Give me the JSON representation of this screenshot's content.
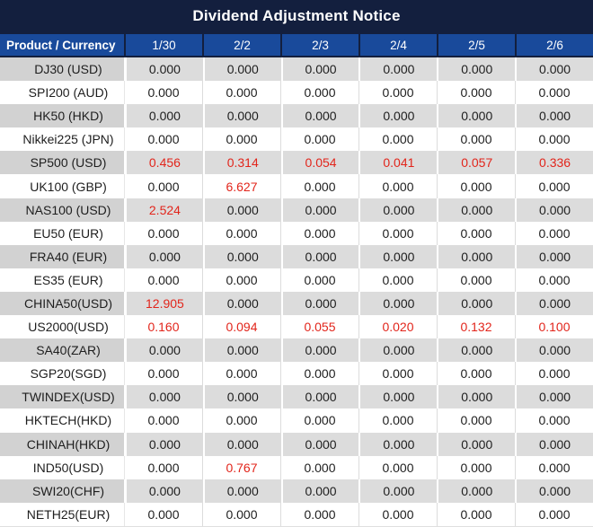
{
  "title": "Dividend Adjustment Notice",
  "chart_data": {
    "type": "table",
    "title": "Dividend Adjustment Notice",
    "columns": [
      "Product / Currency",
      "1/30",
      "2/2",
      "2/3",
      "2/4",
      "2/5",
      "2/6"
    ],
    "rows": [
      {
        "product": "DJ30 (USD)",
        "values": [
          "0.000",
          "0.000",
          "0.000",
          "0.000",
          "0.000",
          "0.000"
        ],
        "red_flags": [
          false,
          false,
          false,
          false,
          false,
          false
        ]
      },
      {
        "product": "SPI200 (AUD)",
        "values": [
          "0.000",
          "0.000",
          "0.000",
          "0.000",
          "0.000",
          "0.000"
        ],
        "red_flags": [
          false,
          false,
          false,
          false,
          false,
          false
        ]
      },
      {
        "product": "HK50 (HKD)",
        "values": [
          "0.000",
          "0.000",
          "0.000",
          "0.000",
          "0.000",
          "0.000"
        ],
        "red_flags": [
          false,
          false,
          false,
          false,
          false,
          false
        ]
      },
      {
        "product": "Nikkei225 (JPN)",
        "values": [
          "0.000",
          "0.000",
          "0.000",
          "0.000",
          "0.000",
          "0.000"
        ],
        "red_flags": [
          false,
          false,
          false,
          false,
          false,
          false
        ]
      },
      {
        "product": "SP500 (USD)",
        "values": [
          "0.456",
          "0.314",
          "0.054",
          "0.041",
          "0.057",
          "0.336"
        ],
        "red_flags": [
          true,
          true,
          true,
          true,
          true,
          true
        ]
      },
      {
        "product": "UK100 (GBP)",
        "values": [
          "0.000",
          "6.627",
          "0.000",
          "0.000",
          "0.000",
          "0.000"
        ],
        "red_flags": [
          false,
          true,
          false,
          false,
          false,
          false
        ]
      },
      {
        "product": "NAS100 (USD)",
        "values": [
          "2.524",
          "0.000",
          "0.000",
          "0.000",
          "0.000",
          "0.000"
        ],
        "red_flags": [
          true,
          false,
          false,
          false,
          false,
          false
        ]
      },
      {
        "product": "EU50 (EUR)",
        "values": [
          "0.000",
          "0.000",
          "0.000",
          "0.000",
          "0.000",
          "0.000"
        ],
        "red_flags": [
          false,
          false,
          false,
          false,
          false,
          false
        ]
      },
      {
        "product": "FRA40 (EUR)",
        "values": [
          "0.000",
          "0.000",
          "0.000",
          "0.000",
          "0.000",
          "0.000"
        ],
        "red_flags": [
          false,
          false,
          false,
          false,
          false,
          false
        ]
      },
      {
        "product": "ES35 (EUR)",
        "values": [
          "0.000",
          "0.000",
          "0.000",
          "0.000",
          "0.000",
          "0.000"
        ],
        "red_flags": [
          false,
          false,
          false,
          false,
          false,
          false
        ]
      },
      {
        "product": "CHINA50(USD)",
        "values": [
          "12.905",
          "0.000",
          "0.000",
          "0.000",
          "0.000",
          "0.000"
        ],
        "red_flags": [
          true,
          false,
          false,
          false,
          false,
          false
        ]
      },
      {
        "product": "US2000(USD)",
        "values": [
          "0.160",
          "0.094",
          "0.055",
          "0.020",
          "0.132",
          "0.100"
        ],
        "red_flags": [
          true,
          true,
          true,
          true,
          true,
          true
        ]
      },
      {
        "product": "SA40(ZAR)",
        "values": [
          "0.000",
          "0.000",
          "0.000",
          "0.000",
          "0.000",
          "0.000"
        ],
        "red_flags": [
          false,
          false,
          false,
          false,
          false,
          false
        ]
      },
      {
        "product": "SGP20(SGD)",
        "values": [
          "0.000",
          "0.000",
          "0.000",
          "0.000",
          "0.000",
          "0.000"
        ],
        "red_flags": [
          false,
          false,
          false,
          false,
          false,
          false
        ]
      },
      {
        "product": "TWINDEX(USD)",
        "values": [
          "0.000",
          "0.000",
          "0.000",
          "0.000",
          "0.000",
          "0.000"
        ],
        "red_flags": [
          false,
          false,
          false,
          false,
          false,
          false
        ]
      },
      {
        "product": "HKTECH(HKD)",
        "values": [
          "0.000",
          "0.000",
          "0.000",
          "0.000",
          "0.000",
          "0.000"
        ],
        "red_flags": [
          false,
          false,
          false,
          false,
          false,
          false
        ]
      },
      {
        "product": "CHINAH(HKD)",
        "values": [
          "0.000",
          "0.000",
          "0.000",
          "0.000",
          "0.000",
          "0.000"
        ],
        "red_flags": [
          false,
          false,
          false,
          false,
          false,
          false
        ]
      },
      {
        "product": "IND50(USD)",
        "values": [
          "0.000",
          "0.767",
          "0.000",
          "0.000",
          "0.000",
          "0.000"
        ],
        "red_flags": [
          false,
          true,
          false,
          false,
          false,
          false
        ]
      },
      {
        "product": "SWI20(CHF)",
        "values": [
          "0.000",
          "0.000",
          "0.000",
          "0.000",
          "0.000",
          "0.000"
        ],
        "red_flags": [
          false,
          false,
          false,
          false,
          false,
          false
        ]
      },
      {
        "product": "NETH25(EUR)",
        "values": [
          "0.000",
          "0.000",
          "0.000",
          "0.000",
          "0.000",
          "0.000"
        ],
        "red_flags": [
          false,
          false,
          false,
          false,
          false,
          false
        ]
      }
    ]
  },
  "colors": {
    "title_bg": "#131F3E",
    "header_bg": "#194A9B",
    "dark_border": "#131F3E",
    "stripe_label": "#D2D2D2",
    "stripe_value": "#DCDCDC",
    "white_divider": "#DCDCDC",
    "value_text": "#1E1E1E",
    "red_text": "#E2251B"
  }
}
